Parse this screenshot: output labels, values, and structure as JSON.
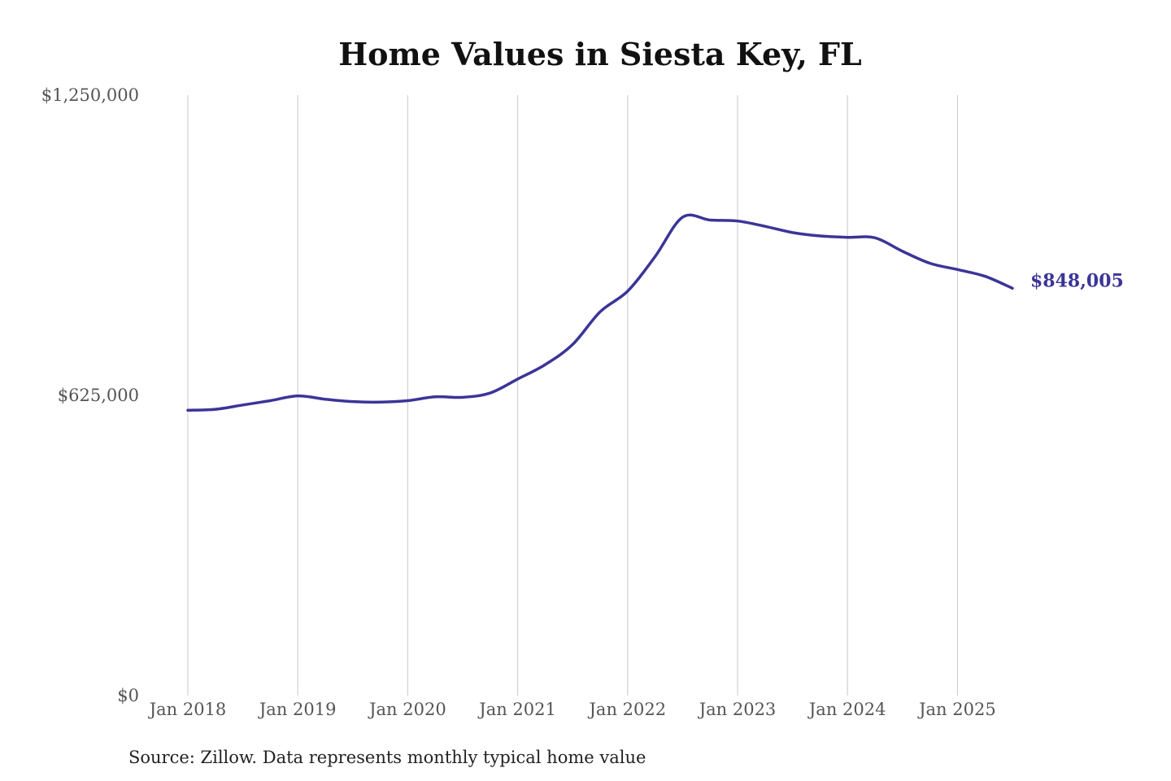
{
  "chart_data": {
    "type": "line",
    "title": "Home Values in Siesta Key, FL",
    "xlabel": "",
    "ylabel": "",
    "ylim": [
      0,
      1250000
    ],
    "xlim": [
      "2018-01",
      "2025-07"
    ],
    "y_ticks": [
      0,
      625000,
      1250000
    ],
    "y_tick_labels": [
      "$0",
      "$625,000",
      "$1,250,000"
    ],
    "x_ticks": [
      "2018-01",
      "2019-01",
      "2020-01",
      "2021-01",
      "2022-01",
      "2023-01",
      "2024-01",
      "2025-01"
    ],
    "x_tick_labels": [
      "Jan 2018",
      "Jan 2019",
      "Jan 2020",
      "Jan 2021",
      "Jan 2022",
      "Jan 2023",
      "Jan 2024",
      "Jan 2025"
    ],
    "grid": {
      "vertical": true,
      "horizontal": false
    },
    "legend": "none",
    "series": [
      {
        "color": "#3b3598",
        "end_label": "$848,005",
        "points": [
          [
            "2018-01",
            594000
          ],
          [
            "2018-04",
            596000
          ],
          [
            "2018-07",
            605000
          ],
          [
            "2018-10",
            614000
          ],
          [
            "2019-01",
            624000
          ],
          [
            "2019-04",
            617000
          ],
          [
            "2019-07",
            612000
          ],
          [
            "2019-10",
            611000
          ],
          [
            "2020-01",
            614000
          ],
          [
            "2020-04",
            622000
          ],
          [
            "2020-07",
            621000
          ],
          [
            "2020-10",
            630000
          ],
          [
            "2021-01",
            659000
          ],
          [
            "2021-04",
            689000
          ],
          [
            "2021-07",
            731000
          ],
          [
            "2021-10",
            799000
          ],
          [
            "2022-01",
            842000
          ],
          [
            "2022-04",
            914000
          ],
          [
            "2022-07",
            996000
          ],
          [
            "2022-10",
            990000
          ],
          [
            "2023-01",
            988000
          ],
          [
            "2023-04",
            977000
          ],
          [
            "2023-07",
            964000
          ],
          [
            "2023-10",
            957000
          ],
          [
            "2024-01",
            954000
          ],
          [
            "2024-04",
            953000
          ],
          [
            "2024-07",
            925000
          ],
          [
            "2024-10",
            900000
          ],
          [
            "2025-01",
            887000
          ],
          [
            "2025-04",
            873000
          ],
          [
            "2025-07",
            848005
          ]
        ]
      }
    ]
  },
  "source": "Source: Zillow. Data represents monthly typical home value"
}
